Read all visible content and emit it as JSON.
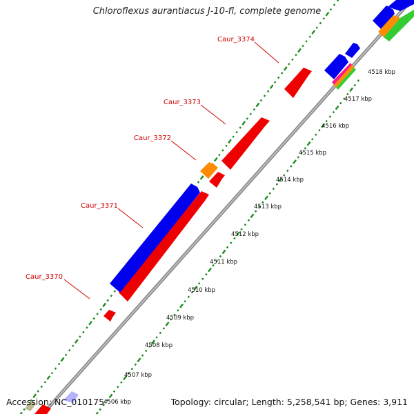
{
  "title": "Chloroflexus aurantiacus J-10-fl, complete genome",
  "accession": "Accession: NC_010175",
  "topology": "Topology: circular; Length: 5,258,541 bp; Genes: 3,911",
  "colors": {
    "backbone": "#909090",
    "tick_dots": "#1a8a1a",
    "gene_label": "#d00000",
    "cds_forward": "#0000ee",
    "cds_reverse": "#ee0000",
    "rna": "#ff8c00",
    "other": "#33cc33",
    "label_gray": "#aaaa77"
  },
  "kbp_markers": [
    "4506 kbp",
    "4507 kbp",
    "4508 kbp",
    "4509 kbp",
    "4510 kbp",
    "4511 kbp",
    "4512 kbp",
    "4513 kbp",
    "4514 kbp",
    "4515 kbp",
    "4516 kbp",
    "4517 kbp",
    "4518 kbp"
  ],
  "gene_labels": [
    "Caur_3370",
    "Caur_3371",
    "Caur_3372",
    "Caur_3373",
    "Caur_3374"
  ]
}
